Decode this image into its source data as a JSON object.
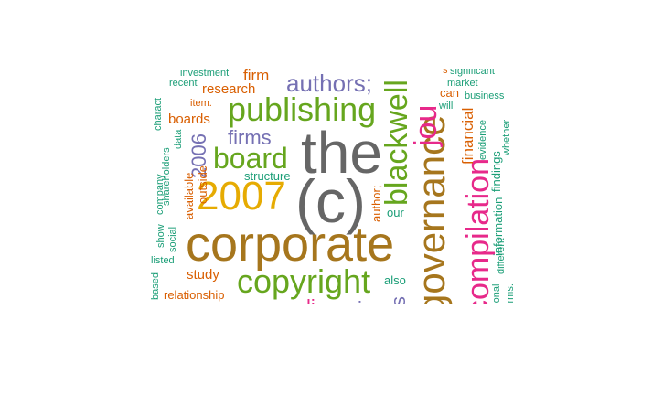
{
  "colors": {
    "teal": "#1b9e77",
    "orange": "#d95f02",
    "purple": "#7570b3",
    "pink": "#e7298a",
    "green": "#66a61e",
    "gold": "#e6ab02",
    "brown": "#a6761d",
    "gray": "#666666"
  },
  "words": {
    "the": "the",
    "c": "(c)",
    "corporate": "corporate",
    "governance": "governance",
    "compilation": "compilation",
    "blackwell": "blackwell",
    "journal": "jou",
    "copyright": "copyright",
    "publishing": "publishing",
    "authors": "authors;",
    "board": "board",
    "y2007": "2007",
    "firms": "firms",
    "firm": "firm",
    "research": "research",
    "boards": "boards",
    "y2006": "2006",
    "structure": "structure",
    "study": "study",
    "relationship": "relationship",
    "financial": "financial",
    "findings": "findings",
    "information": "information",
    "evidence": "evidence",
    "whether": "whether",
    "different": "different",
    "business": "business",
    "market": "market",
    "significant": "significant",
    "will": "will",
    "can": "can",
    "investment": "investment",
    "recent": "recent",
    "item": "item.",
    "data": "data",
    "shareholders": "shareholders",
    "charact": "charact",
    "company": "company",
    "social": "social",
    "show": "show",
    "listed": "listed",
    "based": "based",
    "outside": "outside",
    "available": "available",
    "author": "author;",
    "our": "our",
    "also": "also",
    "is": "is",
    "national": "ational",
    "firms2": "firms.",
    "s": "s",
    "clip_purple": "li",
    "clip_purple2": "i"
  }
}
